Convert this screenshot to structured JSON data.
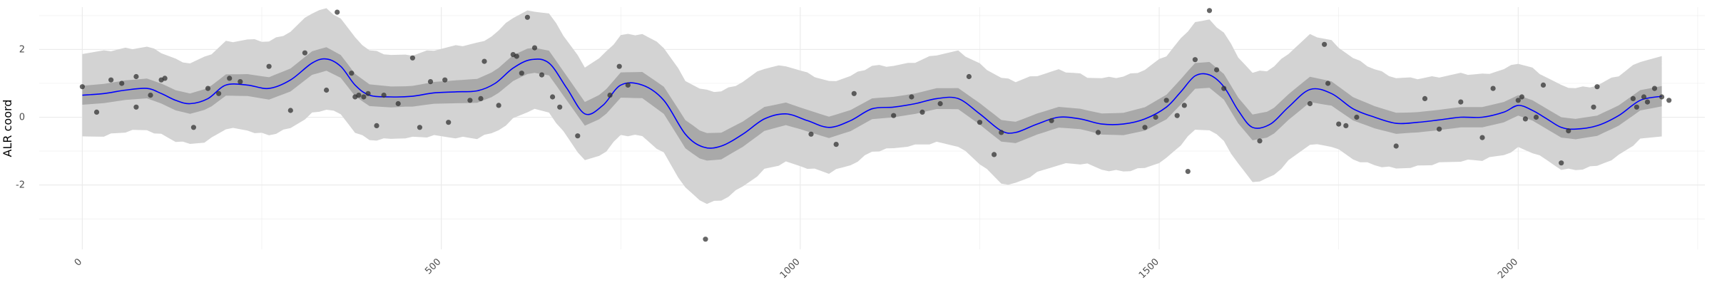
{
  "chart_data": {
    "type": "line",
    "title": "",
    "xlabel": "",
    "ylabel": "ALR coord",
    "xlim": [
      -60,
      2260
    ],
    "ylim": [
      -3.9,
      3.25
    ],
    "x_ticks": [
      0,
      500,
      1000,
      1500,
      2000
    ],
    "x_tick_labels": [
      "0",
      "500",
      "1000",
      "1500",
      "2000"
    ],
    "y_ticks": [
      -2,
      0,
      2
    ],
    "y_tick_labels": [
      "-2",
      "0",
      "2"
    ],
    "grid": true,
    "legend": "none",
    "colors": {
      "line": "#0000ff",
      "inner_band": "#a9a9a9",
      "outer_band": "#d3d3d3",
      "points": "#333333",
      "grid": "#ebebeb"
    },
    "mean_curve": {
      "x": [
        0,
        30,
        60,
        90,
        110,
        130,
        150,
        175,
        200,
        230,
        260,
        290,
        320,
        340,
        360,
        380,
        400,
        430,
        460,
        490,
        520,
        550,
        575,
        600,
        625,
        650,
        675,
        700,
        725,
        750,
        780,
        810,
        840,
        865,
        890,
        920,
        950,
        980,
        1010,
        1040,
        1070,
        1100,
        1130,
        1160,
        1190,
        1220,
        1250,
        1280,
        1300,
        1330,
        1360,
        1390,
        1420,
        1450,
        1480,
        1510,
        1530,
        1550,
        1570,
        1590,
        1610,
        1630,
        1655,
        1680,
        1710,
        1740,
        1770,
        1800,
        1830,
        1860,
        1890,
        1920,
        1950,
        1980,
        2000,
        2020,
        2040,
        2060,
        2080,
        2110,
        2140,
        2170,
        2200
      ],
      "y": [
        0.65,
        0.7,
        0.8,
        0.85,
        0.7,
        0.5,
        0.4,
        0.55,
        0.95,
        0.95,
        0.85,
        1.1,
        1.6,
        1.72,
        1.5,
        0.95,
        0.65,
        0.6,
        0.62,
        0.72,
        0.75,
        0.78,
        1.0,
        1.45,
        1.7,
        1.6,
        0.85,
        0.1,
        0.35,
        0.95,
        0.95,
        0.5,
        -0.5,
        -0.88,
        -0.85,
        -0.5,
        -0.05,
        0.1,
        -0.1,
        -0.3,
        -0.1,
        0.25,
        0.3,
        0.4,
        0.55,
        0.55,
        0.1,
        -0.4,
        -0.45,
        -0.2,
        0.0,
        -0.05,
        -0.2,
        -0.2,
        -0.05,
        0.3,
        0.75,
        1.22,
        1.25,
        0.9,
        0.2,
        -0.3,
        -0.2,
        0.3,
        0.82,
        0.7,
        0.25,
        0.0,
        -0.18,
        -0.15,
        -0.08,
        0.0,
        0.0,
        0.15,
        0.35,
        0.2,
        -0.05,
        -0.3,
        -0.35,
        -0.25,
        0.05,
        0.5,
        0.62
      ]
    },
    "inner_band_halfwidth": {
      "x": [
        0,
        150,
        330,
        450,
        600,
        700,
        850,
        1000,
        1150,
        1270,
        1400,
        1540,
        1700,
        1850,
        2050,
        2200
      ],
      "y": [
        0.28,
        0.3,
        0.35,
        0.3,
        0.38,
        0.35,
        0.42,
        0.32,
        0.3,
        0.32,
        0.3,
        0.38,
        0.38,
        0.3,
        0.3,
        0.3
      ]
    },
    "outer_band_halfwidth": {
      "x": [
        0,
        150,
        330,
        450,
        600,
        700,
        870,
        1000,
        1150,
        1280,
        1400,
        1550,
        1720,
        1850,
        2000,
        2200
      ],
      "y": [
        1.25,
        1.2,
        1.5,
        1.2,
        1.5,
        1.4,
        1.65,
        1.4,
        1.2,
        1.55,
        1.3,
        1.6,
        1.6,
        1.3,
        1.25,
        1.15
      ]
    },
    "observations": {
      "x": [
        0,
        20,
        40,
        55,
        75,
        75,
        95,
        110,
        115,
        155,
        175,
        190,
        205,
        220,
        260,
        290,
        310,
        340,
        355,
        375,
        380,
        385,
        392,
        398,
        410,
        420,
        440,
        460,
        470,
        485,
        505,
        510,
        540,
        555,
        560,
        580,
        600,
        605,
        612,
        620,
        630,
        640,
        655,
        665,
        690,
        735,
        748,
        760,
        868,
        1015,
        1050,
        1075,
        1130,
        1155,
        1170,
        1195,
        1235,
        1250,
        1270,
        1280,
        1350,
        1415,
        1480,
        1495,
        1510,
        1525,
        1535,
        1540,
        1550,
        1570,
        1580,
        1590,
        1640,
        1710,
        1730,
        1735,
        1750,
        1760,
        1775,
        1830,
        1870,
        1890,
        1920,
        1950,
        1965,
        2000,
        2005,
        2010,
        2025,
        2035,
        2060,
        2070,
        2105,
        2110,
        2160,
        2165,
        2175,
        2180,
        2190,
        2200,
        2210
      ],
      "y": [
        0.9,
        0.15,
        1.1,
        1.0,
        1.2,
        0.3,
        0.65,
        1.1,
        1.15,
        -0.3,
        0.85,
        0.7,
        1.15,
        1.05,
        1.5,
        0.2,
        1.9,
        0.8,
        3.1,
        1.3,
        0.6,
        0.65,
        0.6,
        0.7,
        -0.25,
        0.65,
        0.4,
        1.75,
        -0.3,
        1.05,
        1.1,
        -0.15,
        0.5,
        0.55,
        1.65,
        0.35,
        1.85,
        1.8,
        1.3,
        2.95,
        2.05,
        1.25,
        0.6,
        0.3,
        -0.55,
        0.65,
        1.5,
        0.95,
        -3.6,
        -0.5,
        -0.8,
        0.7,
        0.05,
        0.6,
        0.15,
        0.4,
        1.2,
        -0.15,
        -1.1,
        -0.45,
        -0.1,
        -0.45,
        -0.3,
        0.0,
        0.5,
        0.05,
        0.35,
        -1.6,
        1.7,
        3.15,
        1.4,
        0.85,
        -0.7,
        0.4,
        2.15,
        1.0,
        -0.2,
        -0.25,
        0.0,
        -0.85,
        0.55,
        -0.35,
        0.45,
        -0.6,
        0.85,
        0.5,
        0.6,
        -0.05,
        0.0,
        0.95,
        -1.35,
        -0.4,
        0.3,
        0.9,
        0.55,
        0.3,
        0.6,
        0.45,
        0.85,
        0.6,
        0.5
      ]
    }
  }
}
